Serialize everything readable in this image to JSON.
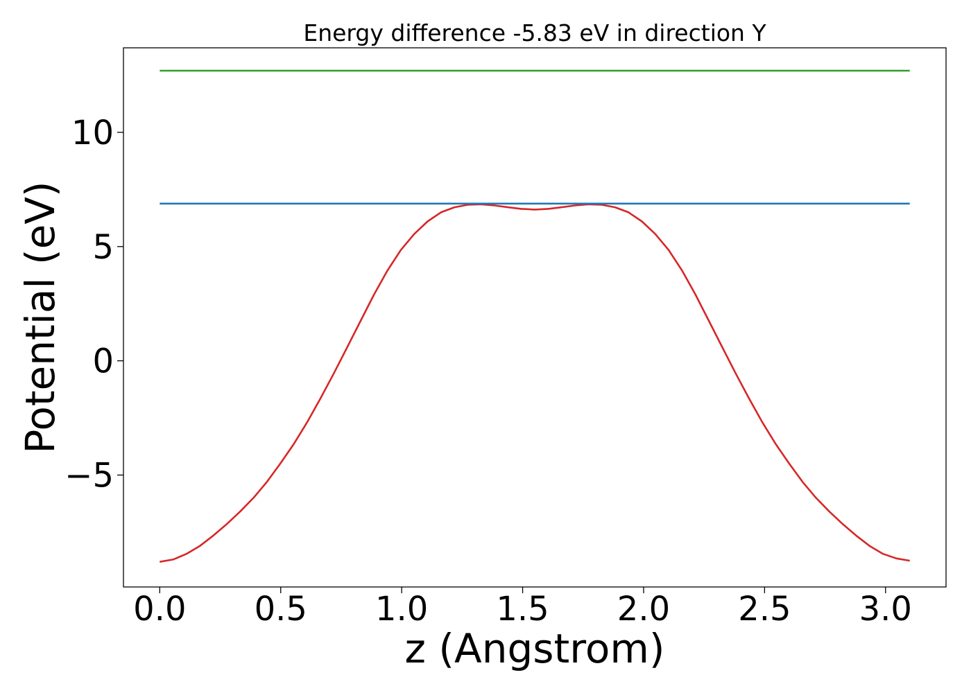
{
  "chart_data": {
    "type": "line",
    "title": "Energy difference -5.83 eV in direction Y",
    "xlabel": "z (Angstrom)",
    "ylabel": "Potential (eV)",
    "xlim": [
      -0.15,
      3.25
    ],
    "ylim": [
      -9.9,
      13.7
    ],
    "xticks": [
      0.0,
      0.5,
      1.0,
      1.5,
      2.0,
      2.5,
      3.0
    ],
    "xtick_labels": [
      "0.0",
      "0.5",
      "1.0",
      "1.5",
      "2.0",
      "2.5",
      "3.0"
    ],
    "yticks": [
      -5,
      0,
      5,
      10
    ],
    "ytick_labels": [
      "−5",
      "0",
      "5",
      "10"
    ],
    "grid": false,
    "series": [
      {
        "color": "#d62728",
        "x": [
          0.0,
          0.0554,
          0.1107,
          0.1661,
          0.2214,
          0.2768,
          0.3321,
          0.3875,
          0.4429,
          0.4982,
          0.5536,
          0.6089,
          0.6643,
          0.7196,
          0.775,
          0.8304,
          0.8857,
          0.9411,
          0.9964,
          1.0518,
          1.1071,
          1.1625,
          1.2179,
          1.2732,
          1.3286,
          1.3839,
          1.4393,
          1.4946,
          1.55,
          1.6054,
          1.6607,
          1.7161,
          1.7714,
          1.8268,
          1.8821,
          1.9375,
          1.9929,
          2.0482,
          2.1036,
          2.1589,
          2.2143,
          2.2696,
          2.325,
          2.3804,
          2.4357,
          2.4911,
          2.5464,
          2.6018,
          2.6571,
          2.7125,
          2.7679,
          2.8232,
          2.8786,
          2.9339,
          2.9893,
          3.0446,
          3.1
        ],
        "y": [
          -8.8,
          -8.7,
          -8.45,
          -8.1,
          -7.65,
          -7.15,
          -6.6,
          -6.0,
          -5.3,
          -4.5,
          -3.65,
          -2.7,
          -1.65,
          -0.55,
          0.6,
          1.75,
          2.9,
          3.95,
          4.85,
          5.55,
          6.1,
          6.5,
          6.72,
          6.83,
          6.85,
          6.8,
          6.72,
          6.65,
          6.62,
          6.65,
          6.72,
          6.8,
          6.85,
          6.83,
          6.72,
          6.5,
          6.1,
          5.55,
          4.85,
          3.95,
          2.9,
          1.75,
          0.6,
          -0.55,
          -1.65,
          -2.7,
          -3.65,
          -4.5,
          -5.3,
          -6.0,
          -6.6,
          -7.15,
          -7.65,
          -8.1,
          -8.45,
          -8.65,
          -8.75
        ]
      },
      {
        "color": "#1f77b4",
        "x": [
          0.0,
          3.1
        ],
        "y": [
          6.88,
          6.88
        ]
      },
      {
        "color": "#2ca02c",
        "x": [
          0.0,
          3.1
        ],
        "y": [
          12.7,
          12.7
        ]
      }
    ]
  }
}
